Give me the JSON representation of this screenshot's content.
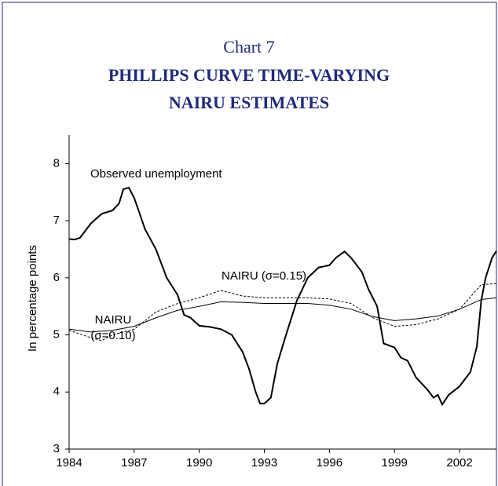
{
  "chart_data": {
    "type": "line",
    "title": "Chart 7",
    "subtitle": [
      "PHILLIPS CURVE TIME-VARYING",
      "NAIRU ESTIMATES"
    ],
    "y_label": "In percentage points",
    "xlim": [
      1984,
      2003.7
    ],
    "xticks": [
      1984,
      1987,
      1990,
      1993,
      1996,
      1999,
      2002
    ],
    "ylim": [
      3,
      8.5
    ],
    "yticks": [
      3,
      4,
      5,
      6,
      7,
      8
    ],
    "series": [
      {
        "name": "Observed unemployment",
        "color": "#000000",
        "style": "solid",
        "width": 2,
        "x": [
          1984,
          1984.25,
          1984.5,
          1985,
          1985.5,
          1986,
          1986.3,
          1986.5,
          1986.75,
          1987,
          1987.5,
          1988,
          1988.5,
          1989,
          1989.3,
          1989.6,
          1990,
          1990.5,
          1991,
          1991.5,
          1992,
          1992.3,
          1992.6,
          1992.8,
          1993,
          1993.3,
          1993.6,
          1994,
          1994.5,
          1995,
          1995.5,
          1996,
          1996.3,
          1996.7,
          1997,
          1997.5,
          1997.8,
          1998.2,
          1998.5,
          1999,
          1999.3,
          1999.6,
          2000,
          2000.5,
          2000.8,
          2001,
          2001.2,
          2001.5,
          2002,
          2002.5,
          2002.8,
          2003,
          2003.2,
          2003.5,
          2003.7
        ],
        "values": [
          6.68,
          6.67,
          6.7,
          6.95,
          7.12,
          7.18,
          7.3,
          7.55,
          7.58,
          7.4,
          6.85,
          6.5,
          6.0,
          5.7,
          5.35,
          5.3,
          5.16,
          5.14,
          5.1,
          5.0,
          4.7,
          4.4,
          4.0,
          3.8,
          3.8,
          3.9,
          4.5,
          5.0,
          5.6,
          6.0,
          6.18,
          6.22,
          6.35,
          6.46,
          6.35,
          6.1,
          5.8,
          5.5,
          4.85,
          4.78,
          4.6,
          4.55,
          4.25,
          4.05,
          3.9,
          3.95,
          3.78,
          3.95,
          4.1,
          4.35,
          4.8,
          5.6,
          6.0,
          6.35,
          6.47
        ]
      },
      {
        "name": "NAIRU (σ=0.15)",
        "color": "#000000",
        "style": "dashed",
        "width": 1,
        "x": [
          1984,
          1985,
          1985.5,
          1986,
          1987,
          1988,
          1989,
          1990,
          1991,
          1992,
          1993,
          1994,
          1995,
          1996,
          1997,
          1998,
          1999,
          2000,
          2001,
          2002,
          2003,
          2003.7
        ],
        "values": [
          5.08,
          4.95,
          4.9,
          5.0,
          5.1,
          5.4,
          5.55,
          5.65,
          5.78,
          5.68,
          5.65,
          5.65,
          5.65,
          5.63,
          5.55,
          5.3,
          5.15,
          5.18,
          5.28,
          5.45,
          5.88,
          5.9
        ]
      },
      {
        "name": "NAIRU (σ=0.10)",
        "color": "#000000",
        "style": "solid",
        "width": 1,
        "x": [
          1984,
          1985,
          1986,
          1987,
          1988,
          1989,
          1990,
          1991,
          1992,
          1993,
          1994,
          1995,
          1996,
          1997,
          1998,
          1999,
          2000,
          2001,
          2002,
          2003,
          2003.7
        ],
        "values": [
          5.1,
          5.05,
          5.08,
          5.15,
          5.3,
          5.43,
          5.5,
          5.58,
          5.57,
          5.55,
          5.55,
          5.55,
          5.52,
          5.45,
          5.32,
          5.25,
          5.28,
          5.33,
          5.45,
          5.62,
          5.65
        ]
      }
    ]
  }
}
